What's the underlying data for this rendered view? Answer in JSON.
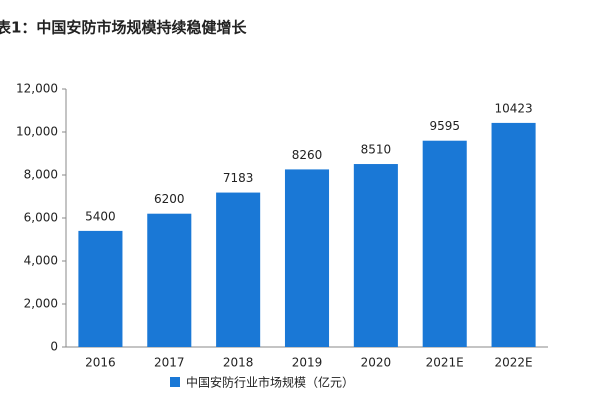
{
  "chart_data": {
    "type": "bar",
    "title": "表1：中国安防市场规模持续稳健增长",
    "categories": [
      "2016",
      "2017",
      "2018",
      "2019",
      "2020",
      "2021E",
      "2022E"
    ],
    "series": [
      {
        "name": "中国安防行业市场规模（亿元）",
        "color": "#1a78d6",
        "values": [
          5400,
          6200,
          7183,
          8260,
          8510,
          9595,
          10423
        ]
      }
    ],
    "ylim": [
      0,
      12000
    ],
    "yticks": [
      0,
      {
        "value": 2000,
        "label": "2,000"
      },
      {
        "value": 4000,
        "label": "4,000"
      },
      {
        "value": 6000,
        "label": "6,000"
      },
      {
        "value": 8000,
        "label": "8,000"
      },
      {
        "value": 10000,
        "label": "10,000"
      },
      {
        "value": 12000,
        "label": "12,000"
      }
    ],
    "grid": false,
    "legend": "bottom"
  }
}
